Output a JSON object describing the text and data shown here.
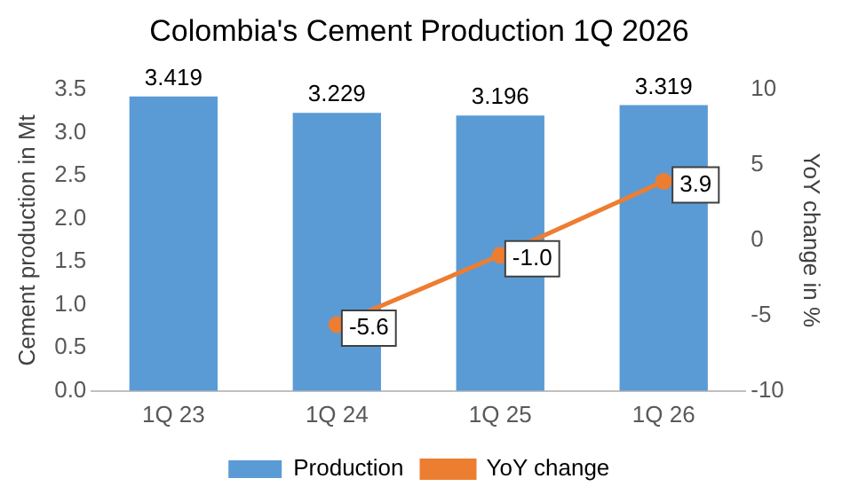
{
  "chart_data": {
    "type": "bar",
    "title": "Colombia's Cement Production 1Q 2026",
    "ylabel": "Cement production in Mt",
    "y2label": "YoY change in %",
    "categories": [
      "1Q 23",
      "1Q 24",
      "1Q 25",
      "1Q 26"
    ],
    "series": [
      {
        "name": "Production",
        "color": "#5b9bd5",
        "values": [
          3.419,
          3.229,
          3.196,
          3.319
        ],
        "value_labels": [
          "3.419",
          "3.229",
          "3.196",
          "3.319"
        ]
      },
      {
        "name": "YoY change",
        "type": "line",
        "axis": "y2",
        "color": "#ed7d31",
        "marker": "circle",
        "values": [
          null,
          -5.6,
          -1.0,
          3.9
        ],
        "value_labels": [
          null,
          "-5.6",
          "-1.0",
          "3.9"
        ]
      }
    ],
    "ylim": [
      0,
      3.5
    ],
    "yticks": [
      {
        "value": 0,
        "label": "0.0"
      },
      {
        "value": 0.5,
        "label": "0.5"
      },
      {
        "value": 1,
        "label": "1.0"
      },
      {
        "value": 1.5,
        "label": "1.5"
      },
      {
        "value": 2,
        "label": "2.0"
      },
      {
        "value": 2.5,
        "label": "2.5"
      },
      {
        "value": 3,
        "label": "3.0"
      },
      {
        "value": 3.5,
        "label": "3.5"
      }
    ],
    "y2lim": [
      -10,
      10
    ],
    "y2ticks": [
      -10,
      -5,
      0,
      5,
      10
    ],
    "grid": false,
    "legend": "bottom"
  }
}
